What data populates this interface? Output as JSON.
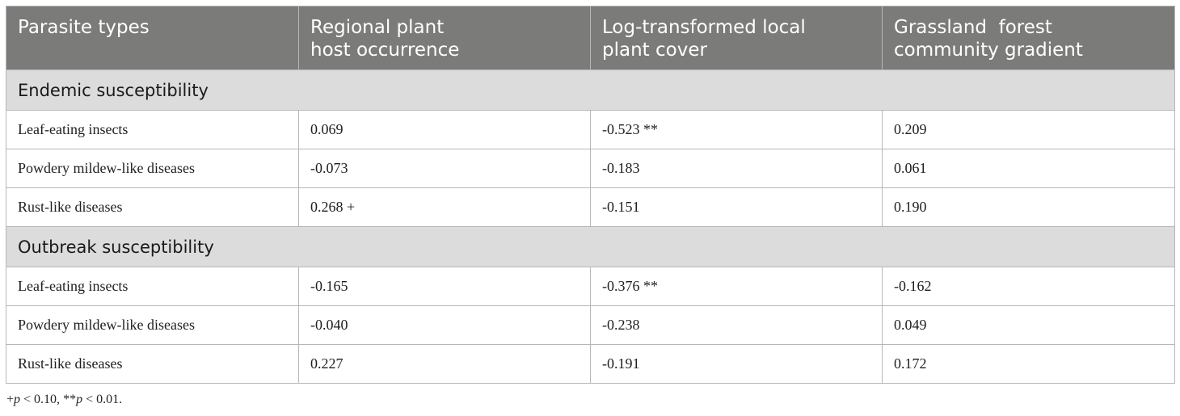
{
  "columns": [
    "Parasite types",
    "Regional plant host occurrence",
    "Log-transformed local plant cover",
    "Grassland  forest community gradient"
  ],
  "sections": [
    {
      "title": "Endemic susceptibility",
      "rows": [
        [
          "Leaf-eating insects",
          "0.069",
          "-0.523 **",
          "0.209"
        ],
        [
          "Powdery mildew-like diseases",
          "-0.073",
          "-0.183",
          "0.061"
        ],
        [
          "Rust-like diseases",
          "0.268 +",
          "-0.151",
          "0.190"
        ]
      ]
    },
    {
      "title": "Outbreak susceptibility",
      "rows": [
        [
          "Leaf-eating insects",
          "-0.165",
          "-0.376 **",
          "-0.162"
        ],
        [
          "Powdery mildew-like diseases",
          "-0.040",
          "-0.238",
          "0.049"
        ],
        [
          "Rust-like diseases",
          "0.227",
          "-0.191",
          "0.172"
        ]
      ]
    }
  ],
  "footnote": {
    "sig1_symbol": "+",
    "sig1_var": "p",
    "sig1_rest": " < 0.10, ",
    "sig2_symbol": "**",
    "sig2_var": "p",
    "sig2_rest": " < 0.01."
  }
}
